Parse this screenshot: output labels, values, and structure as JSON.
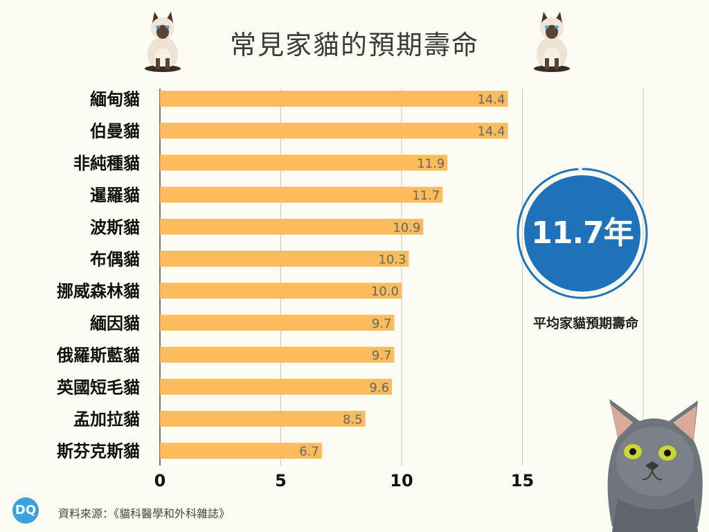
{
  "title": "常見家貓的預期壽命",
  "colors": {
    "bar": "#fcbc5e",
    "accent": "#1f72b8",
    "background": "#fcfcf2"
  },
  "average": {
    "value": "11.7年",
    "caption": "平均家貓預期壽命",
    "fraction": 0.99
  },
  "source": "資料來源：《貓科醫學和外科雜誌》",
  "logo": "DQ",
  "icons": [
    "siamese-cat-image",
    "siamese-cat-image",
    "gray-cat-image"
  ],
  "chart_data": {
    "type": "bar",
    "orientation": "horizontal",
    "title": "常見家貓的預期壽命",
    "categories": [
      "緬甸貓",
      "伯曼貓",
      "非純種貓",
      "暹羅貓",
      "波斯貓",
      "布偶貓",
      "挪威森林貓",
      "緬因貓",
      "俄羅斯藍貓",
      "英國短毛貓",
      "孟加拉貓",
      "斯芬克斯貓"
    ],
    "values": [
      14.4,
      14.4,
      11.9,
      11.7,
      10.9,
      10.3,
      10.0,
      9.7,
      9.7,
      9.6,
      8.5,
      6.7
    ],
    "labels": [
      "14.4",
      "14.4",
      "11.9",
      "11.7",
      "10.9",
      "10.3",
      "10.0",
      "9.7",
      "9.7",
      "9.6",
      "8.5",
      "6.7"
    ],
    "xlim": [
      0,
      20
    ],
    "xticks": [
      0,
      5,
      10,
      15
    ],
    "grid": true,
    "xlabel": "",
    "ylabel": ""
  }
}
